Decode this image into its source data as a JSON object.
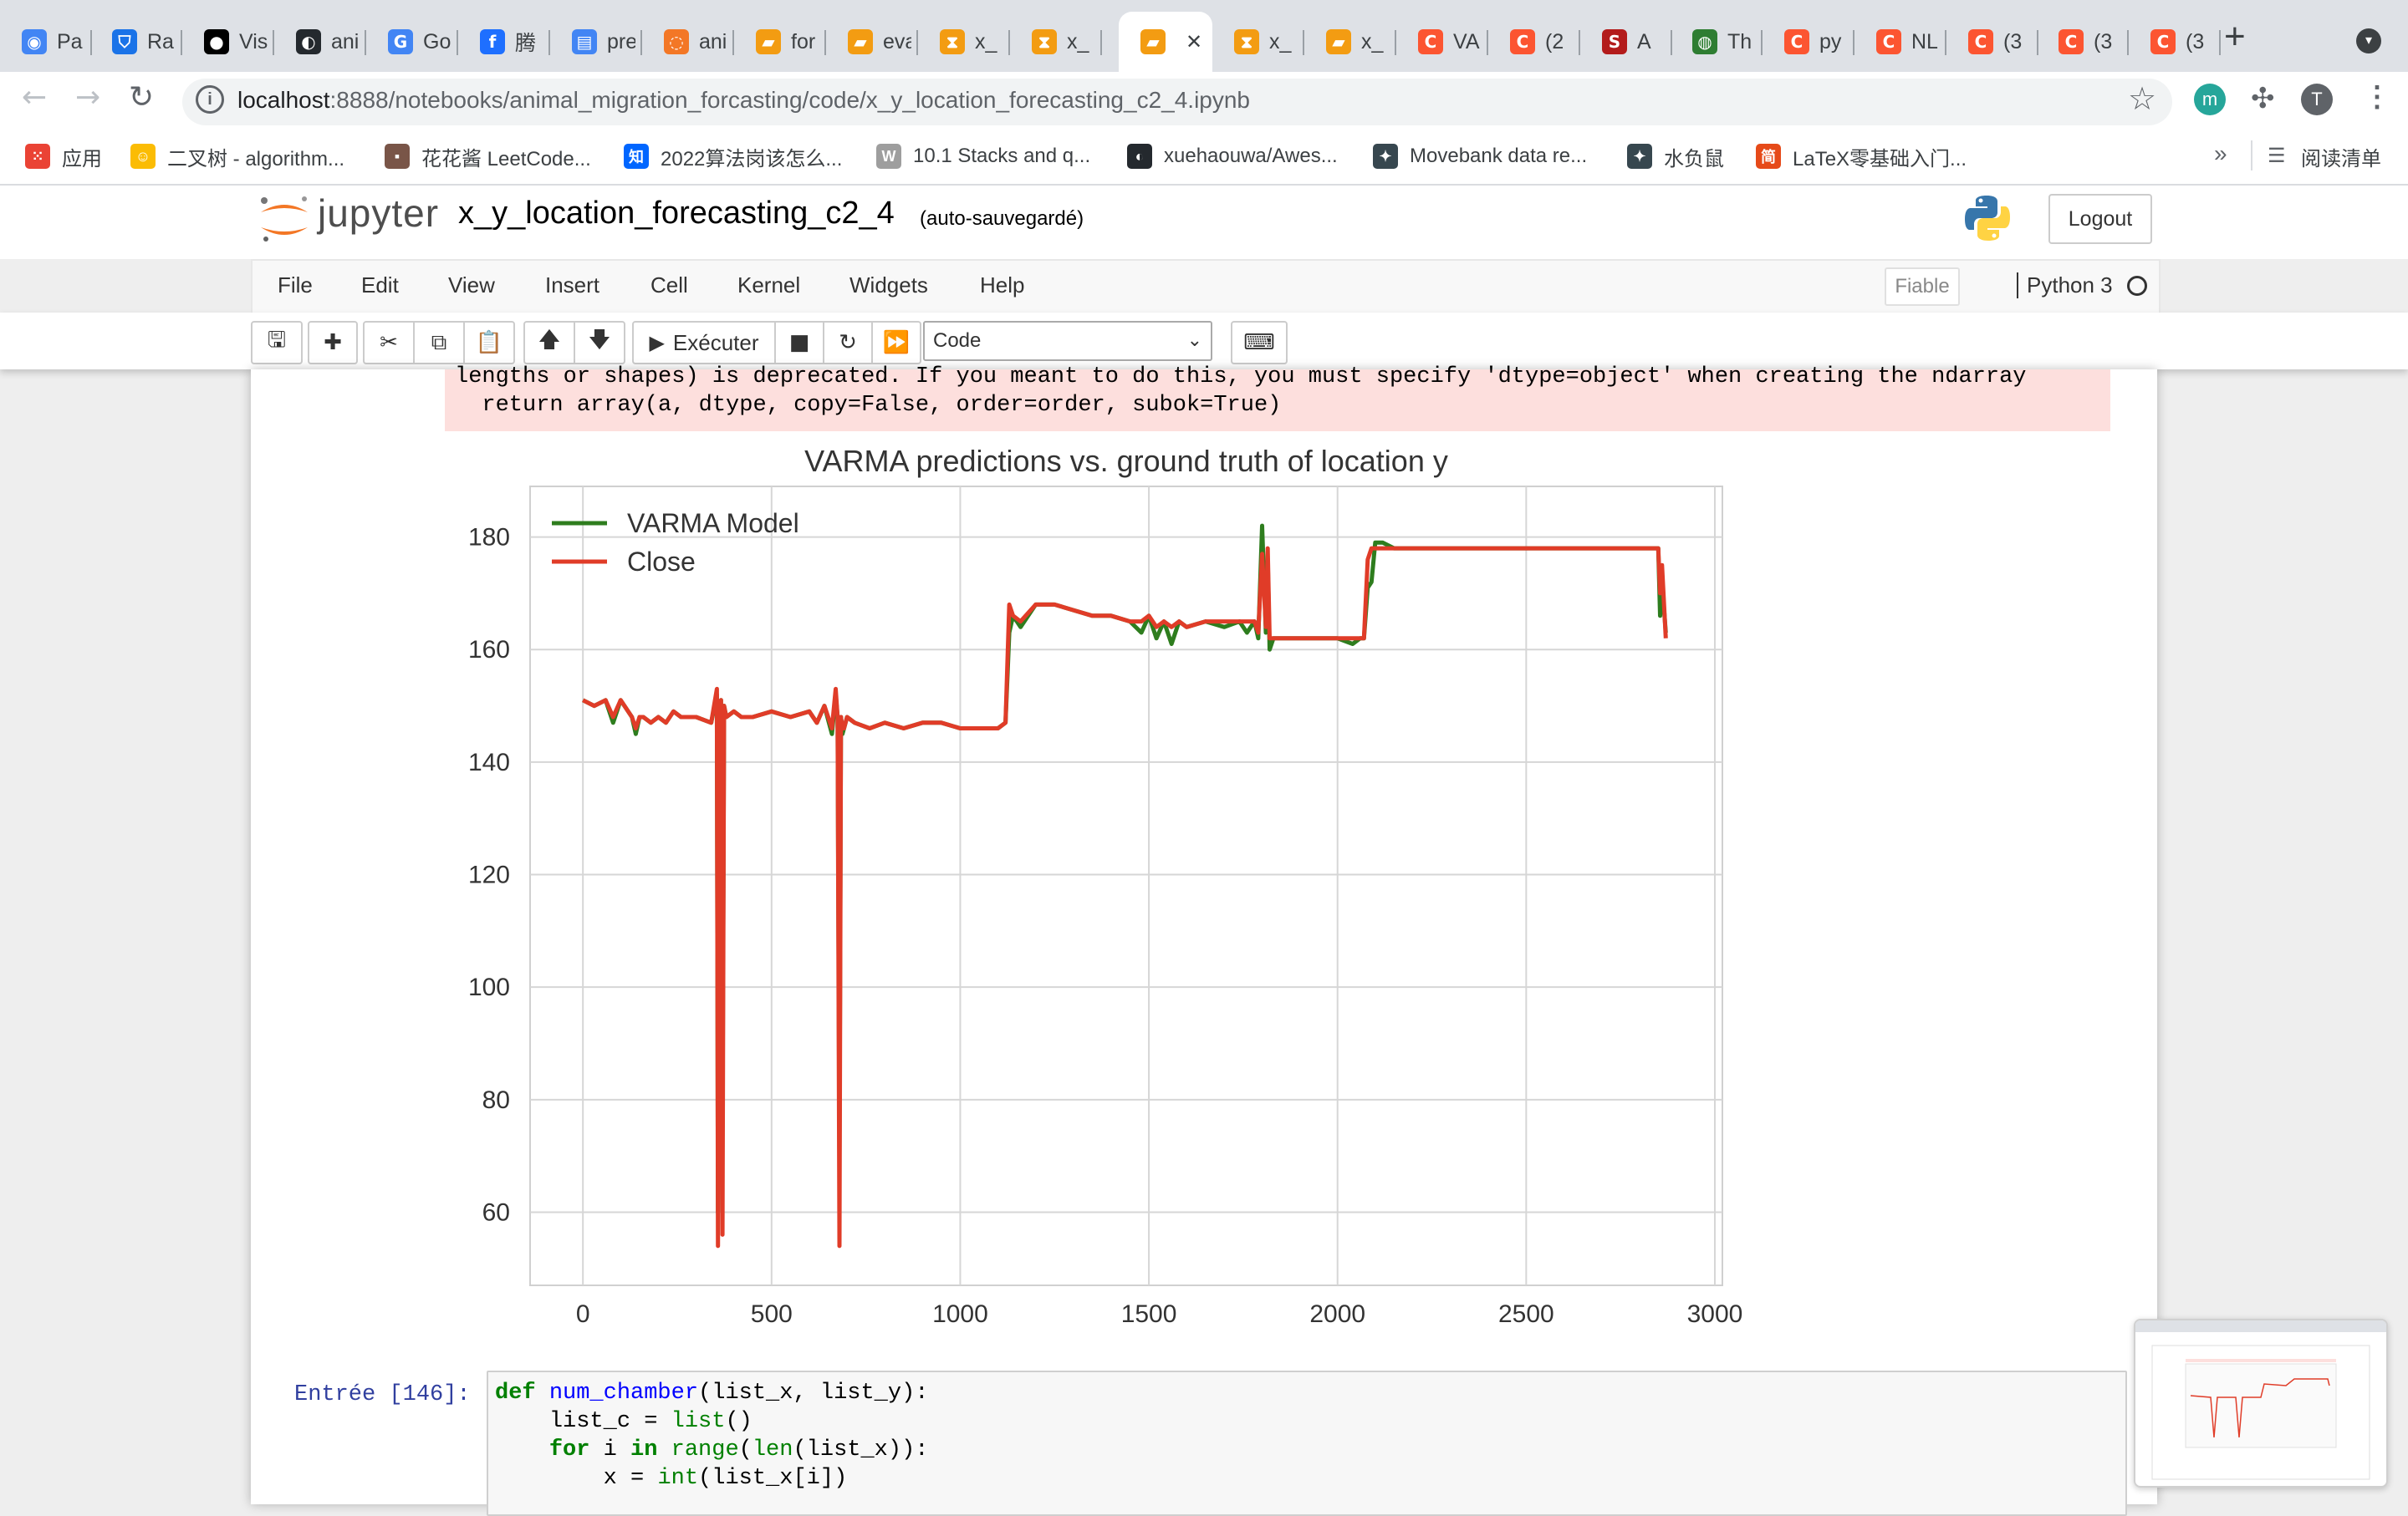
{
  "browser": {
    "tabs": [
      {
        "title": "Pa",
        "icon": "app-icon",
        "color": "#4285f4"
      },
      {
        "title": "Ra",
        "icon": "shield-icon",
        "color": "#1a73e8"
      },
      {
        "title": "Vis",
        "icon": "video-icon",
        "color": "#000000"
      },
      {
        "title": "ani",
        "icon": "github-icon",
        "color": "#24292e"
      },
      {
        "title": "Go",
        "icon": "translate-icon",
        "color": "#4285f4"
      },
      {
        "title": "腾",
        "icon": "tencent-icon",
        "color": "#1e6fff"
      },
      {
        "title": "pre",
        "icon": "docs-icon",
        "color": "#4285f4"
      },
      {
        "title": "ani",
        "icon": "jupyter-icon",
        "color": "#f37726"
      },
      {
        "title": "for",
        "icon": "notebook-icon",
        "color": "#f39c12"
      },
      {
        "title": "eva",
        "icon": "notebook-icon",
        "color": "#f39c12"
      },
      {
        "title": "x_",
        "icon": "hourglass-icon",
        "color": "#f39c12"
      },
      {
        "title": "x_",
        "icon": "hourglass-icon",
        "color": "#f39c12"
      },
      {
        "title": "",
        "icon": "notebook-icon",
        "color": "#f39c12",
        "active": true
      },
      {
        "title": "x_",
        "icon": "hourglass-icon",
        "color": "#f39c12"
      },
      {
        "title": "x_",
        "icon": "notebook-icon",
        "color": "#f39c12"
      },
      {
        "title": "VA",
        "icon": "csdn-icon",
        "color": "#fc5531"
      },
      {
        "title": "(2",
        "icon": "csdn-icon",
        "color": "#fc5531"
      },
      {
        "title": "A",
        "icon": "scholar-icon",
        "color": "#b31b1b"
      },
      {
        "title": "Th",
        "icon": "globe-icon",
        "color": "#2e7d32"
      },
      {
        "title": "py",
        "icon": "csdn-icon",
        "color": "#fc5531"
      },
      {
        "title": "NL",
        "icon": "csdn-icon",
        "color": "#fc5531"
      },
      {
        "title": "(3",
        "icon": "csdn-icon",
        "color": "#fc5531"
      },
      {
        "title": "(3",
        "icon": "csdn-icon",
        "color": "#fc5531"
      },
      {
        "title": "(3",
        "icon": "csdn-icon",
        "color": "#fc5531"
      }
    ],
    "url_host": "localhost",
    "url_path": ":8888/notebooks/animal_migration_forcasting/code/x_y_location_forecasting_c2_4.ipynb",
    "profile_initial": "T",
    "extension_initial": "m",
    "bookmarks": [
      {
        "label": "应用",
        "icon": "apps-icon",
        "color": "#ea4335"
      },
      {
        "label": "二叉树 - algorithm...",
        "icon": "emoji-icon",
        "color": "#fbbc04"
      },
      {
        "label": "花花酱 LeetCode...",
        "icon": "avatar-icon",
        "color": "#795548"
      },
      {
        "label": "2022算法岗该怎么...",
        "icon": "zhihu-icon",
        "color": "#0066ff"
      },
      {
        "label": "10.1 Stacks and q...",
        "icon": "w-icon",
        "color": "#9e9e9e"
      },
      {
        "label": "xuehaouwa/Awes...",
        "icon": "github-icon",
        "color": "#24292e"
      },
      {
        "label": "Movebank data re...",
        "icon": "paw-icon",
        "color": "#37474f"
      },
      {
        "label": "水负鼠",
        "icon": "paw-icon",
        "color": "#37474f"
      },
      {
        "label": "LaTeX零基础入门...",
        "icon": "jian-icon",
        "color": "#e64a19"
      }
    ],
    "bookmarks_more": "»",
    "reading_list": "阅读清单"
  },
  "jupyter": {
    "logo_text": "jupyter",
    "notebook_name": "x_y_location_forecasting_c2_4",
    "autosave": "(auto-sauvegardé)",
    "logout": "Logout",
    "menus": [
      "File",
      "Edit",
      "View",
      "Insert",
      "Cell",
      "Kernel",
      "Widgets",
      "Help"
    ],
    "trusted": "Fiable",
    "kernel": "Python 3",
    "run_label": "Exécuter",
    "cell_type": "Code"
  },
  "output": {
    "stderr_line1": "lengths or shapes) is deprecated. If you meant to do this, you must specify 'dtype=object' when creating the ndarray",
    "stderr_line2": "  return array(a, dtype, copy=False, order=order, subok=True)"
  },
  "chart_data": {
    "type": "line",
    "title": "VARMA predictions vs. ground truth of location y",
    "xlabel": "",
    "ylabel": "",
    "xlim": [
      -140,
      3020
    ],
    "ylim": [
      47,
      189
    ],
    "xticks": [
      0,
      500,
      1000,
      1500,
      2000,
      2500,
      3000
    ],
    "yticks": [
      60,
      80,
      100,
      120,
      140,
      160,
      180
    ],
    "grid": true,
    "legend_position": "top-left",
    "series": [
      {
        "name": "VARMA Model",
        "color": "#2e7d1e",
        "x": [
          0,
          30,
          60,
          80,
          100,
          120,
          130,
          140,
          150,
          160,
          180,
          200,
          220,
          240,
          260,
          300,
          340,
          355,
          358,
          362,
          366,
          370,
          374,
          380,
          400,
          420,
          450,
          500,
          550,
          600,
          620,
          640,
          660,
          670,
          675,
          680,
          684,
          688,
          692,
          700,
          720,
          760,
          800,
          850,
          900,
          950,
          1000,
          1050,
          1100,
          1120,
          1130,
          1140,
          1160,
          1200,
          1250,
          1300,
          1350,
          1400,
          1450,
          1480,
          1500,
          1520,
          1540,
          1560,
          1580,
          1600,
          1650,
          1700,
          1740,
          1760,
          1780,
          1790,
          1800,
          1810,
          1815,
          1820,
          1830,
          1850,
          1900,
          1950,
          2000,
          2040,
          2060,
          2070,
          2080,
          2090,
          2100,
          2120,
          2150,
          2200,
          2300,
          2400,
          2500,
          2600,
          2700,
          2780,
          2840,
          2850,
          2855,
          2860,
          2870
        ],
        "y": [
          151,
          150,
          151,
          147,
          151,
          149,
          148,
          145,
          148,
          148,
          147,
          148,
          147,
          149,
          148,
          148,
          147,
          152,
          60,
          148,
          151,
          75,
          150,
          148,
          149,
          148,
          148,
          149,
          148,
          149,
          147,
          150,
          145,
          152,
          148,
          70,
          148,
          145,
          146,
          148,
          147,
          146,
          147,
          146,
          147,
          147,
          146,
          146,
          146,
          147,
          163,
          166,
          164,
          168,
          168,
          167,
          166,
          166,
          165,
          163,
          166,
          162,
          165,
          161,
          165,
          164,
          165,
          164,
          165,
          163,
          165,
          162,
          182,
          163,
          176,
          160,
          162,
          162,
          162,
          162,
          162,
          161,
          162,
          162,
          171,
          172,
          179,
          179,
          178,
          178,
          178,
          178,
          178,
          178,
          178,
          178,
          178,
          178,
          166,
          172,
          163
        ]
      },
      {
        "name": "Close",
        "color": "#e03c28",
        "x": [
          0,
          30,
          60,
          80,
          100,
          120,
          130,
          140,
          150,
          160,
          180,
          200,
          220,
          240,
          260,
          300,
          340,
          355,
          358,
          362,
          366,
          370,
          374,
          380,
          400,
          420,
          450,
          500,
          550,
          600,
          620,
          640,
          660,
          670,
          675,
          680,
          684,
          688,
          692,
          700,
          720,
          760,
          800,
          850,
          900,
          950,
          1000,
          1050,
          1100,
          1120,
          1130,
          1140,
          1160,
          1200,
          1250,
          1300,
          1350,
          1400,
          1450,
          1480,
          1500,
          1520,
          1540,
          1560,
          1580,
          1600,
          1650,
          1700,
          1740,
          1760,
          1780,
          1790,
          1800,
          1810,
          1815,
          1820,
          1830,
          1850,
          1900,
          1950,
          2000,
          2040,
          2060,
          2070,
          2080,
          2090,
          2100,
          2120,
          2150,
          2200,
          2300,
          2400,
          2500,
          2600,
          2700,
          2780,
          2840,
          2850,
          2855,
          2860,
          2870
        ],
        "y": [
          151,
          150,
          151,
          148,
          151,
          149,
          148,
          146,
          148,
          148,
          147,
          148,
          147,
          149,
          148,
          148,
          147,
          153,
          54,
          148,
          151,
          56,
          150,
          148,
          149,
          148,
          148,
          149,
          148,
          149,
          147,
          150,
          146,
          153,
          148,
          54,
          148,
          146,
          146,
          148,
          147,
          146,
          147,
          146,
          147,
          147,
          146,
          146,
          146,
          147,
          168,
          166,
          165,
          168,
          168,
          167,
          166,
          166,
          165,
          165,
          166,
          164,
          165,
          164,
          165,
          164,
          165,
          165,
          165,
          165,
          165,
          163,
          177,
          164,
          178,
          162,
          162,
          162,
          162,
          162,
          162,
          162,
          162,
          162,
          176,
          178,
          178,
          178,
          178,
          178,
          178,
          178,
          178,
          178,
          178,
          178,
          178,
          178,
          170,
          175,
          162
        ]
      }
    ]
  },
  "code_cell": {
    "prompt": "Entrée [146]:",
    "lines": [
      "def num_chamber(list_x, list_y):",
      "    list_c = list()",
      "    for i in range(len(list_x)):",
      "        x = int(list_x[i])"
    ]
  }
}
